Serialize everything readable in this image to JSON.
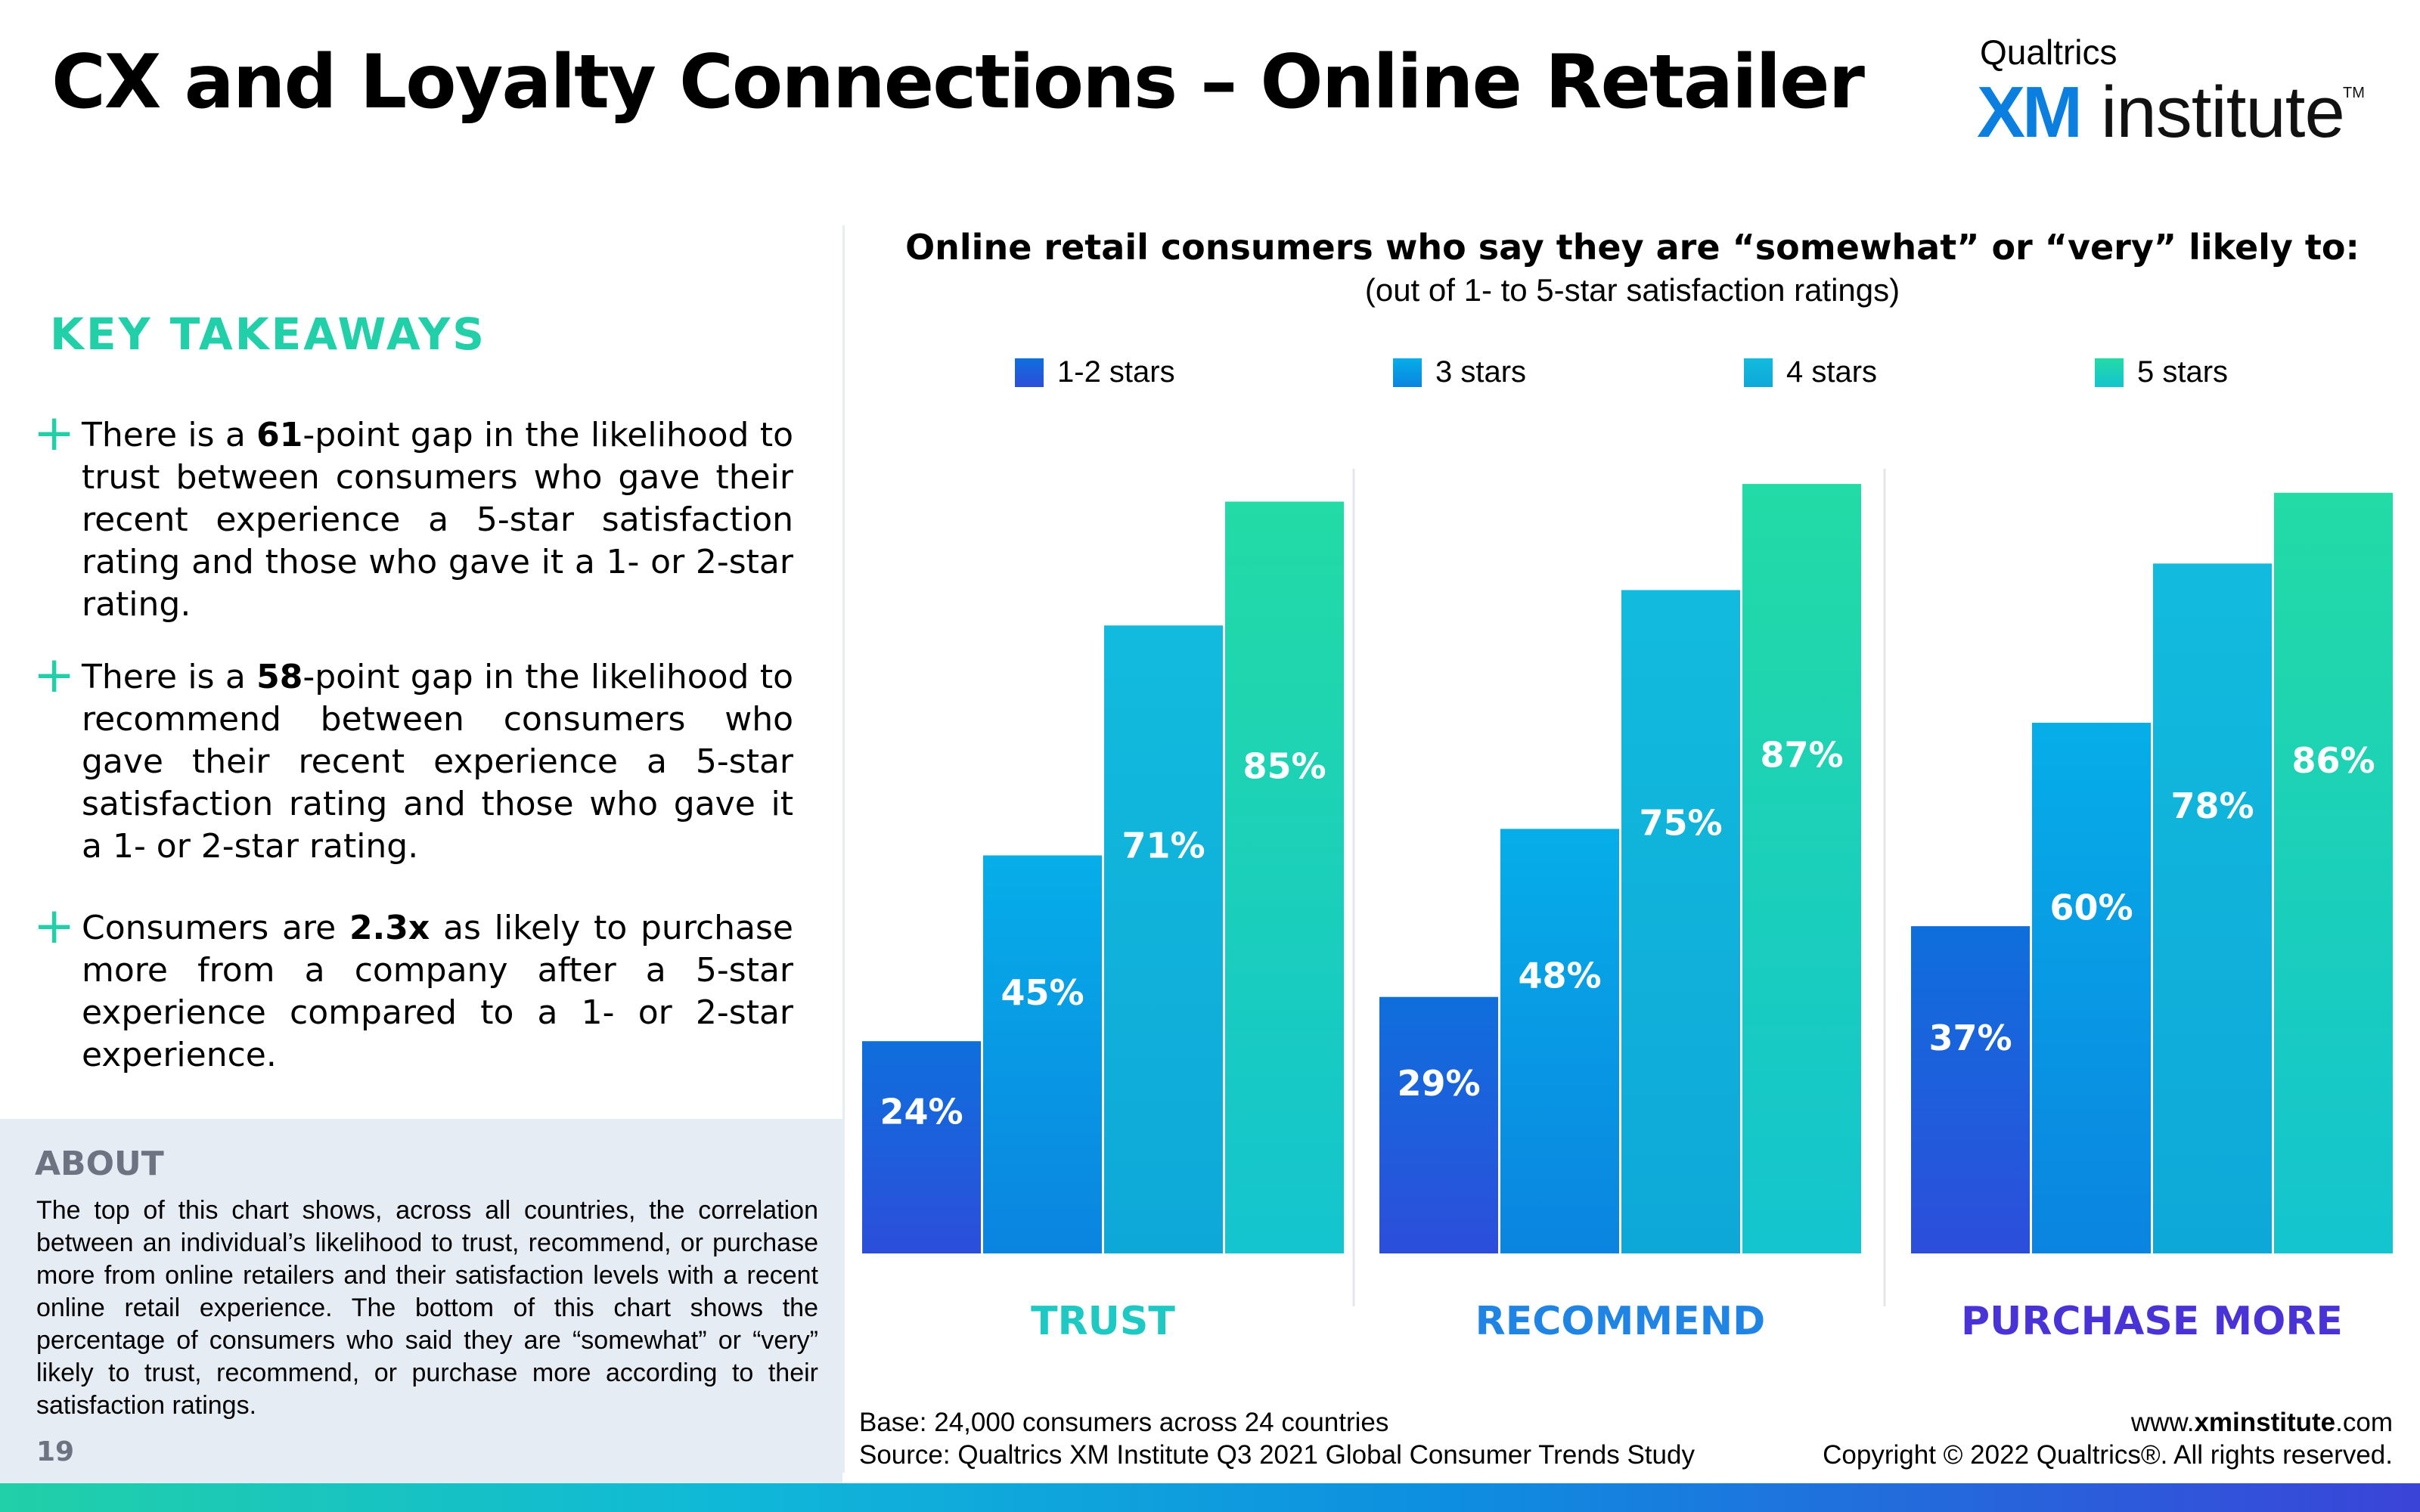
{
  "header": {
    "title": "CX and Loyalty Connections – Online Retailer",
    "logo_top": "Qualtrics",
    "logo_xm": "XM",
    "logo_institute": "institute",
    "logo_tm": "TM"
  },
  "takeaways": {
    "title": "KEY TAKEAWAYS",
    "items": [
      {
        "pre": "There is a ",
        "bold": "61",
        "post": "-point gap in the likelihood to trust between consumers who gave their recent experience a 5-star satisfaction rating and those who gave it a 1- or 2-star rating."
      },
      {
        "pre": "There is a ",
        "bold": "58",
        "post": "-point gap in the likelihood to recommend between consumers who gave their recent experience a 5-star satisfaction rating and those who gave it a 1- or 2-star rating."
      },
      {
        "pre": "Consumers are ",
        "bold": "2.3x",
        "post": " as likely to purchase more from a company after a 5-star experience compared to a 1- or 2-star experience."
      }
    ]
  },
  "about": {
    "title": "ABOUT",
    "text": "The top of this chart shows, across all countries, the correlation between an individual’s likelihood to trust, recommend, or purchase more from online retailers and their satisfaction levels with a recent online retail experience. The bottom of this chart shows the percentage of consumers who said they are “somewhat” or “very” likely to trust, recommend, or purchase more according to their satisfaction ratings.",
    "page_number": "19"
  },
  "chart_data": {
    "type": "bar",
    "title": "Online retail consumers who say they are “somewhat” or “very” likely to:",
    "subtitle": "(out of 1- to 5-star satisfaction ratings)",
    "categories": [
      "TRUST",
      "RECOMMEND",
      "PURCHASE MORE"
    ],
    "category_colors": [
      "#1ec9c4",
      "#1f84e4",
      "#4a33d6"
    ],
    "series": [
      {
        "name": "1-2 stars",
        "values": [
          24,
          29,
          37
        ],
        "color_top": "#0f6fdc",
        "color_bottom": "#2c4edb"
      },
      {
        "name": "3 stars",
        "values": [
          45,
          48,
          60
        ],
        "color_top": "#06aee8",
        "color_bottom": "#0a84e0"
      },
      {
        "name": "4 stars",
        "values": [
          71,
          75,
          78
        ],
        "color_top": "#12bbdd",
        "color_bottom": "#0ea8d8"
      },
      {
        "name": "5 stars",
        "values": [
          85,
          87,
          86
        ],
        "color_top": "#22dba5",
        "color_bottom": "#14c4cf"
      }
    ],
    "value_suffix": "%",
    "ylim": [
      0,
      100
    ],
    "legend_position": "top",
    "grid": false
  },
  "footer": {
    "base": "Base: 24,000 consumers across 24 countries",
    "source": "Source: Qualtrics XM Institute Q3 2021 Global Consumer Trends Study",
    "url_prefix": "www.",
    "url_bold": "xminstitute",
    "url_suffix": ".com",
    "copyright": "Copyright © 2022 Qualtrics®. All rights reserved."
  }
}
